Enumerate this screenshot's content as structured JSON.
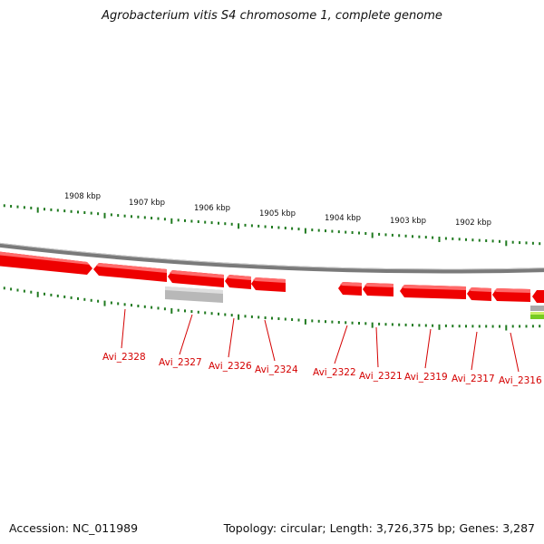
{
  "title": "Agrobacterium vitis S4 chromosome 1, complete genome",
  "footer": {
    "accession": "Accession: NC_011989",
    "stats": "Topology: circular; Length: 3,726,375 bp; Genes: 3,287"
  },
  "colors": {
    "backbone": "#8a8a8a",
    "ticks": "#1f7a1f",
    "gene_forward": "#ee0000",
    "gene_highlight": "#bdbdbd",
    "labels": "#d40000",
    "other_feature": "#99dd33"
  },
  "ruler_labels": [
    "1908 kbp",
    "1907 kbp",
    "1906 kbp",
    "1905 kbp",
    "1904 kbp",
    "1903 kbp",
    "1902 kbp"
  ],
  "gene_labels": [
    "Avi_2328",
    "Avi_2327",
    "Avi_2326",
    "Avi_2324",
    "Avi_2322",
    "Avi_2321",
    "Avi_2319",
    "Avi_2317",
    "Avi_2316"
  ]
}
